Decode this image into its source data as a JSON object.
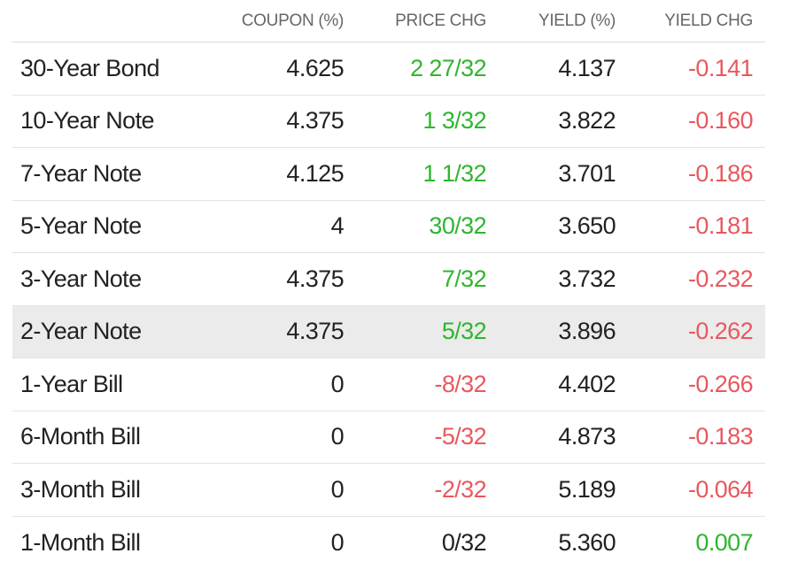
{
  "colors": {
    "positive": "#2fb52f",
    "negative": "#e8585e",
    "neutral": "#222222",
    "highlight_row": "#ebebeb"
  },
  "headers": {
    "name": "",
    "coupon": "COUPON (%)",
    "price_chg": "PRICE CHG",
    "yield": "YIELD (%)",
    "yield_chg": "YIELD CHG"
  },
  "rows": [
    {
      "name": "30-Year Bond",
      "coupon": "4.625",
      "price_chg": "2 27/32",
      "price_dir": "pos",
      "yield": "4.137",
      "yield_chg": "-0.141",
      "yield_dir": "neg",
      "highlight": false
    },
    {
      "name": "10-Year Note",
      "coupon": "4.375",
      "price_chg": "1 3/32",
      "price_dir": "pos",
      "yield": "3.822",
      "yield_chg": "-0.160",
      "yield_dir": "neg",
      "highlight": false
    },
    {
      "name": "7-Year Note",
      "coupon": "4.125",
      "price_chg": "1 1/32",
      "price_dir": "pos",
      "yield": "3.701",
      "yield_chg": "-0.186",
      "yield_dir": "neg",
      "highlight": false
    },
    {
      "name": "5-Year Note",
      "coupon": "4",
      "price_chg": "30/32",
      "price_dir": "pos",
      "yield": "3.650",
      "yield_chg": "-0.181",
      "yield_dir": "neg",
      "highlight": false
    },
    {
      "name": "3-Year Note",
      "coupon": "4.375",
      "price_chg": "7/32",
      "price_dir": "pos",
      "yield": "3.732",
      "yield_chg": "-0.232",
      "yield_dir": "neg",
      "highlight": false
    },
    {
      "name": "2-Year Note",
      "coupon": "4.375",
      "price_chg": "5/32",
      "price_dir": "pos",
      "yield": "3.896",
      "yield_chg": "-0.262",
      "yield_dir": "neg",
      "highlight": true
    },
    {
      "name": "1-Year Bill",
      "coupon": "0",
      "price_chg": "-8/32",
      "price_dir": "neg",
      "yield": "4.402",
      "yield_chg": "-0.266",
      "yield_dir": "neg",
      "highlight": false
    },
    {
      "name": "6-Month Bill",
      "coupon": "0",
      "price_chg": "-5/32",
      "price_dir": "neg",
      "yield": "4.873",
      "yield_chg": "-0.183",
      "yield_dir": "neg",
      "highlight": false
    },
    {
      "name": "3-Month Bill",
      "coupon": "0",
      "price_chg": "-2/32",
      "price_dir": "neg",
      "yield": "5.189",
      "yield_chg": "-0.064",
      "yield_dir": "neg",
      "highlight": false
    },
    {
      "name": "1-Month Bill",
      "coupon": "0",
      "price_chg": "0/32",
      "price_dir": "neu",
      "yield": "5.360",
      "yield_chg": "0.007",
      "yield_dir": "pos",
      "highlight": false
    }
  ]
}
